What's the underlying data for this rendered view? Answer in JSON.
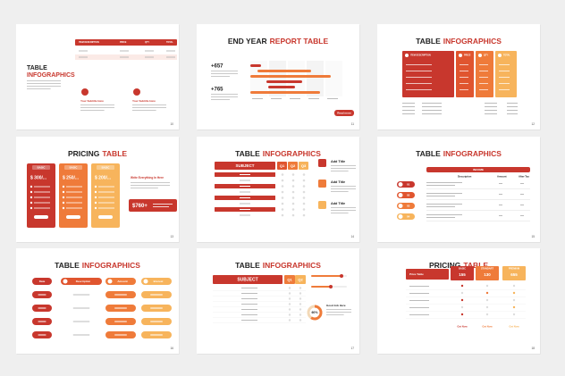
{
  "slides": [
    {
      "title": "TABLE",
      "accent": "INFOGRAPHICS",
      "page": "10",
      "headers": [
        "ITEM DESCRIPTION",
        "PRICE",
        "QTY",
        "TOTAL"
      ],
      "notes": [
        "Your Subtitle Here",
        "Your Subtitle Here"
      ]
    },
    {
      "title": "END YEAR",
      "accent": "REPORT TABLE",
      "page": "11",
      "stats": [
        "+657",
        "+765"
      ],
      "button": "Read more"
    },
    {
      "title": "TABLE",
      "accent": "INFOGRAPHICS",
      "page": "12",
      "headers": [
        "ITEM DESCRIPTION",
        "PRICE",
        "QTY",
        "TOTAL"
      ]
    },
    {
      "title": "PRICING",
      "accent": "TABLE",
      "page": "13",
      "plans": [
        "BASIC",
        "BASIC",
        "BASIC"
      ],
      "prices": [
        "$ 300/...",
        "$ 250/...",
        "$ 200/..."
      ],
      "note": "Write Everything In Here",
      "total": "$760+"
    },
    {
      "title": "TABLE",
      "accent": "INFOGRAPHICS",
      "page": "14",
      "headers": [
        "SUBJECT",
        "Q1",
        "Q2",
        "Q3"
      ],
      "items": [
        "Add Title",
        "Add Title",
        "Add Title"
      ]
    },
    {
      "title": "TABLE",
      "accent": "INFOGRAPHICS",
      "page": "15",
      "header": "INCOME",
      "headers": [
        "Description",
        "Amount",
        "After Tax"
      ],
      "steps": [
        "01",
        "02",
        "03",
        "04"
      ]
    },
    {
      "title": "TABLE",
      "accent": "INFOGRAPHICS",
      "page": "16",
      "headers": [
        "Date",
        "Description",
        "Amount",
        "Interest"
      ]
    },
    {
      "title": "TABLE",
      "accent": "INFOGRAPHICS",
      "page": "17",
      "headers": [
        "SUBJECT",
        "Q1",
        "Q2"
      ],
      "percent": "60%",
      "note": "Good Job Here"
    },
    {
      "title": "PRICING",
      "accent": "TABLE",
      "page": "18",
      "headers": [
        "Price Table",
        "BASIC",
        "STANDART",
        "PREMIUM"
      ],
      "prices": [
        "155",
        "130",
        "655"
      ],
      "buttons": [
        "Get Now",
        "Get Now",
        "Get Now"
      ]
    }
  ]
}
